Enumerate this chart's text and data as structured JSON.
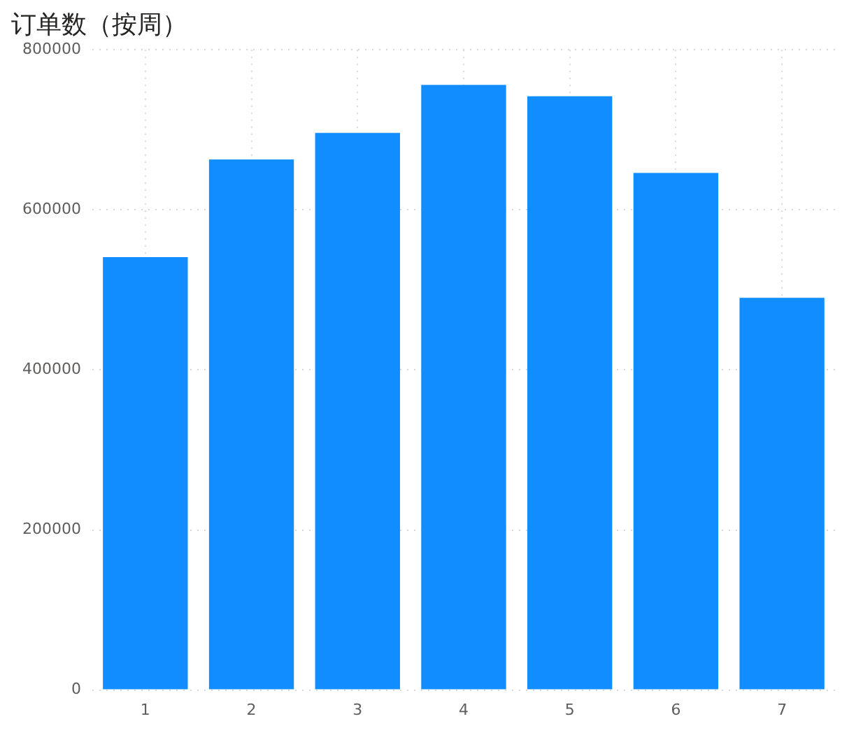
{
  "chart_data": {
    "type": "bar",
    "title": "订单数（按周）",
    "categories": [
      "1",
      "2",
      "3",
      "4",
      "5",
      "6",
      "7"
    ],
    "values": [
      541000,
      663000,
      696000,
      756000,
      742000,
      646000,
      490000
    ],
    "color": "#118dff",
    "ylim": [
      0,
      800000
    ],
    "yticks": [
      0,
      200000,
      400000,
      600000,
      800000
    ],
    "grid": true
  }
}
